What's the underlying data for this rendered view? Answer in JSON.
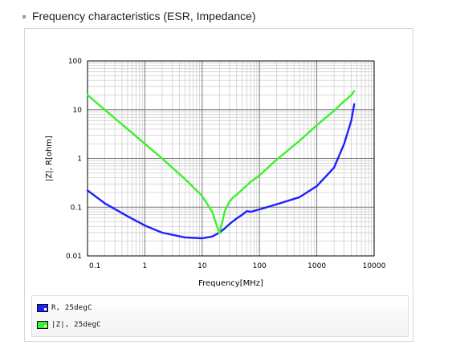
{
  "header": {
    "title": "Frequency characteristics (ESR, Impedance)"
  },
  "colors": {
    "background": "#ffffff",
    "grid": "#c8c8c8",
    "axis": "#000000",
    "series_R": "#1f20ff",
    "series_Z": "#3bf12c"
  },
  "chart_data": {
    "type": "line",
    "title": "",
    "xlabel": "Frequency[MHz]",
    "ylabel": "|Z|, R[ohm]",
    "x_scale": "log",
    "y_scale": "log",
    "xlim": [
      0.1,
      10000
    ],
    "ylim": [
      0.01,
      100
    ],
    "x_ticks": [
      "0.1",
      "1",
      "10",
      "100",
      "1000",
      "10000"
    ],
    "y_ticks": [
      "0.01",
      "0.1",
      "1",
      "10",
      "100"
    ],
    "grid": true,
    "legend_position": "bottom",
    "series": [
      {
        "name": "R, 25degC",
        "color": "#1f20ff",
        "x": [
          0.1,
          0.2,
          0.5,
          1,
          2,
          5,
          10,
          15,
          20,
          25,
          30,
          35,
          40,
          50,
          60,
          70,
          100,
          200,
          500,
          1000,
          2000,
          3000,
          4000,
          4500
        ],
        "y": [
          0.22,
          0.12,
          0.065,
          0.042,
          0.03,
          0.024,
          0.023,
          0.025,
          0.03,
          0.037,
          0.045,
          0.052,
          0.059,
          0.07,
          0.083,
          0.08,
          0.09,
          0.115,
          0.16,
          0.27,
          0.65,
          2.0,
          6.0,
          13.0
        ]
      },
      {
        "name": "|Z|, 25degC",
        "color": "#3bf12c",
        "x": [
          0.1,
          0.2,
          0.5,
          1,
          2,
          5,
          10,
          15,
          18,
          20,
          22,
          25,
          30,
          35,
          40,
          50,
          60,
          70,
          100,
          200,
          500,
          1000,
          2000,
          3000,
          4000,
          4500
        ],
        "y": [
          20,
          10,
          4,
          2,
          1,
          0.38,
          0.17,
          0.08,
          0.042,
          0.029,
          0.045,
          0.085,
          0.13,
          0.16,
          0.18,
          0.23,
          0.28,
          0.33,
          0.45,
          0.95,
          2.3,
          4.8,
          9.5,
          15,
          20,
          24
        ]
      }
    ]
  }
}
